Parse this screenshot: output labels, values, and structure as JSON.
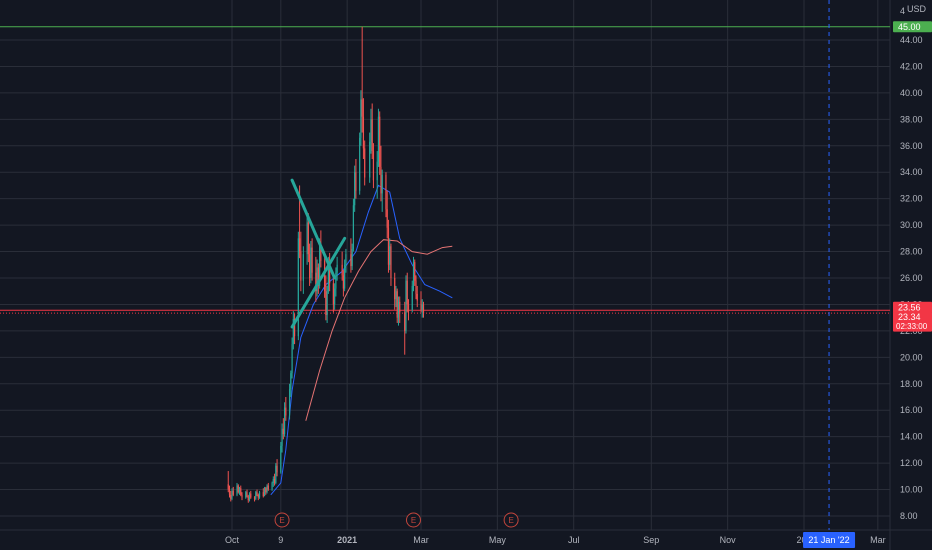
{
  "chart_data": {
    "type": "candlestick",
    "currency": "USD",
    "y_axis": {
      "range": [
        7,
        46.3
      ],
      "ticks": [
        "8.00",
        "10.00",
        "12.00",
        "14.00",
        "16.00",
        "18.00",
        "20.00",
        "22.00",
        "24.00",
        "26.00",
        "28.00",
        "30.00",
        "32.00",
        "34.00",
        "36.00",
        "38.00",
        "40.00",
        "42.00",
        "44.00"
      ],
      "top_tick_partial": "4",
      "grid": true
    },
    "x_axis": {
      "ticks": [
        {
          "label": "Oct",
          "date": "2020-10-01"
        },
        {
          "label": "9",
          "date": "2020-11-09"
        },
        {
          "label": "2021",
          "date": "2021-01-01"
        },
        {
          "label": "Mar",
          "date": "2021-03-01"
        },
        {
          "label": "May",
          "date": "2021-05-01"
        },
        {
          "label": "Jul",
          "date": "2021-07-01"
        },
        {
          "label": "Sep",
          "date": "2021-09-01"
        },
        {
          "label": "Nov",
          "date": "2021-11-01"
        },
        {
          "label": "202",
          "date": "2022-01-01"
        },
        {
          "label": "Mar",
          "date": "2022-03-01"
        }
      ],
      "cursor": {
        "label": "21 Jan '22",
        "date": "2022-01-21"
      }
    },
    "price_labels": [
      {
        "value": 45.0,
        "text": "45.00",
        "color": "#4caf50"
      },
      {
        "value": 23.56,
        "text": "23.56",
        "color": "#f23645"
      },
      {
        "value": 23.34,
        "text": "23.34",
        "color": "#f23645",
        "subtext": "02:33:00"
      }
    ],
    "horizontal_lines": [
      {
        "value": 45.0,
        "color": "#4caf50"
      },
      {
        "value": 23.56,
        "color": "#f23645"
      },
      {
        "value": 23.34,
        "color": "#f23645",
        "dotted": true
      }
    ],
    "earnings_markers": [
      {
        "label": "E",
        "date": "2020-11-10"
      },
      {
        "label": "E",
        "date": "2021-02-23"
      },
      {
        "label": "E",
        "date": "2021-05-12"
      }
    ],
    "drawings": [
      {
        "type": "trendline",
        "color": "#26a69a",
        "from": {
          "date": "2020-11-18",
          "value": 33.4
        },
        "to": {
          "date": "2020-12-22",
          "value": 26.0
        }
      },
      {
        "type": "trendline",
        "color": "#26a69a",
        "from": {
          "date": "2020-11-18",
          "value": 22.3
        },
        "to": {
          "date": "2020-12-30",
          "value": 29.0
        }
      }
    ],
    "moving_averages": [
      {
        "color": "#2962ff",
        "points": [
          [
            "2020-11-01",
            9.6
          ],
          [
            "2020-11-09",
            10.5
          ],
          [
            "2020-11-13",
            13.0
          ],
          [
            "2020-11-18",
            17.5
          ],
          [
            "2020-11-25",
            21.5
          ],
          [
            "2020-12-05",
            24.0
          ],
          [
            "2020-12-15",
            25.5
          ],
          [
            "2020-12-28",
            26.5
          ],
          [
            "2021-01-08",
            28.0
          ],
          [
            "2021-01-18",
            31.0
          ],
          [
            "2021-01-26",
            33.0
          ],
          [
            "2021-02-04",
            32.5
          ],
          [
            "2021-02-12",
            29.0
          ],
          [
            "2021-02-22",
            27.0
          ],
          [
            "2021-03-04",
            25.5
          ],
          [
            "2021-03-16",
            25.0
          ],
          [
            "2021-03-26",
            24.5
          ]
        ]
      },
      {
        "color": "#e57373",
        "points": [
          [
            "2020-11-29",
            15.2
          ],
          [
            "2020-12-10",
            19.0
          ],
          [
            "2020-12-20",
            22.0
          ],
          [
            "2020-12-30",
            24.5
          ],
          [
            "2021-01-10",
            26.5
          ],
          [
            "2021-01-20",
            28.0
          ],
          [
            "2021-01-30",
            28.9
          ],
          [
            "2021-02-10",
            28.8
          ],
          [
            "2021-02-22",
            28.0
          ],
          [
            "2021-03-06",
            27.8
          ],
          [
            "2021-03-18",
            28.3
          ],
          [
            "2021-03-26",
            28.4
          ]
        ]
      }
    ],
    "candles": [
      [
        "2020-09-28",
        10.4,
        11.4,
        9.8,
        10.0
      ],
      [
        "2020-09-29",
        10.0,
        10.3,
        9.4,
        9.6
      ],
      [
        "2020-09-30",
        9.6,
        9.9,
        9.1,
        9.3
      ],
      [
        "2020-10-01",
        9.3,
        10.1,
        9.2,
        9.9
      ],
      [
        "2020-10-02",
        9.9,
        10.2,
        9.5,
        9.6
      ],
      [
        "2020-10-05",
        9.6,
        10.5,
        9.5,
        10.3
      ],
      [
        "2020-10-06",
        10.3,
        10.4,
        9.7,
        9.8
      ],
      [
        "2020-10-07",
        9.8,
        10.2,
        9.6,
        10.1
      ],
      [
        "2020-10-08",
        10.1,
        10.3,
        9.5,
        9.6
      ],
      [
        "2020-10-09",
        9.6,
        9.8,
        9.2,
        9.4
      ],
      [
        "2020-10-12",
        9.4,
        9.9,
        9.3,
        9.8
      ],
      [
        "2020-10-13",
        9.8,
        10.0,
        9.4,
        9.5
      ],
      [
        "2020-10-14",
        9.5,
        9.6,
        9.0,
        9.2
      ],
      [
        "2020-10-15",
        9.2,
        9.8,
        9.1,
        9.7
      ],
      [
        "2020-10-16",
        9.7,
        9.9,
        9.3,
        9.4
      ],
      [
        "2020-10-19",
        9.4,
        9.5,
        9.1,
        9.3
      ],
      [
        "2020-10-20",
        9.3,
        9.9,
        9.2,
        9.8
      ],
      [
        "2020-10-21",
        9.8,
        10.0,
        9.5,
        9.6
      ],
      [
        "2020-10-22",
        9.6,
        9.7,
        9.2,
        9.4
      ],
      [
        "2020-10-23",
        9.4,
        9.9,
        9.3,
        9.8
      ],
      [
        "2020-10-26",
        9.8,
        10.1,
        9.4,
        9.5
      ],
      [
        "2020-10-27",
        9.5,
        10.2,
        9.5,
        10.1
      ],
      [
        "2020-10-28",
        10.1,
        10.2,
        9.6,
        9.8
      ],
      [
        "2020-10-29",
        9.8,
        10.4,
        9.7,
        10.3
      ],
      [
        "2020-10-30",
        10.3,
        10.5,
        9.9,
        10.0
      ],
      [
        "2020-11-02",
        10.0,
        10.6,
        9.9,
        10.5
      ],
      [
        "2020-11-03",
        10.5,
        11.0,
        10.2,
        10.8
      ],
      [
        "2020-11-04",
        10.8,
        11.2,
        10.3,
        10.5
      ],
      [
        "2020-11-05",
        10.5,
        12.0,
        10.4,
        11.8
      ],
      [
        "2020-11-06",
        11.8,
        12.3,
        11.0,
        11.3
      ],
      [
        "2020-11-09",
        11.3,
        13.6,
        11.2,
        13.3
      ],
      [
        "2020-11-10",
        13.3,
        15.0,
        12.8,
        14.6
      ],
      [
        "2020-11-11",
        14.6,
        15.4,
        13.8,
        14.2
      ],
      [
        "2020-11-12",
        14.2,
        16.6,
        14.0,
        16.2
      ],
      [
        "2020-11-13",
        16.2,
        17.0,
        15.2,
        15.6
      ],
      [
        "2020-11-16",
        15.6,
        18.0,
        15.3,
        17.6
      ],
      [
        "2020-11-17",
        17.6,
        19.0,
        17.0,
        18.8
      ],
      [
        "2020-11-18",
        18.8,
        21.5,
        18.4,
        21.0
      ],
      [
        "2020-11-19",
        21.0,
        23.5,
        20.6,
        22.9
      ],
      [
        "2020-11-20",
        22.9,
        23.3,
        21.0,
        21.6
      ],
      [
        "2020-11-23",
        21.6,
        29.5,
        21.3,
        29.0
      ],
      [
        "2020-11-24",
        29.0,
        33.0,
        27.5,
        28.0
      ],
      [
        "2020-11-25",
        28.0,
        29.5,
        25.0,
        25.8
      ],
      [
        "2020-11-27",
        25.8,
        28.4,
        24.8,
        27.8
      ],
      [
        "2020-11-30",
        27.8,
        30.8,
        27.0,
        30.2
      ],
      [
        "2020-12-01",
        30.2,
        30.9,
        27.2,
        27.8
      ],
      [
        "2020-12-02",
        27.8,
        28.6,
        25.4,
        26.0
      ],
      [
        "2020-12-03",
        26.0,
        28.8,
        25.6,
        28.3
      ],
      [
        "2020-12-04",
        28.3,
        29.0,
        25.8,
        26.4
      ],
      [
        "2020-12-07",
        26.4,
        27.6,
        24.2,
        25.0
      ],
      [
        "2020-12-08",
        25.0,
        27.4,
        24.6,
        26.8
      ],
      [
        "2020-12-09",
        26.8,
        27.1,
        24.8,
        25.4
      ],
      [
        "2020-12-10",
        25.4,
        29.0,
        25.2,
        28.6
      ],
      [
        "2020-12-11",
        28.6,
        29.6,
        26.8,
        27.3
      ],
      [
        "2020-12-14",
        27.3,
        27.8,
        24.5,
        25.0
      ],
      [
        "2020-12-15",
        25.0,
        26.2,
        22.8,
        23.2
      ],
      [
        "2020-12-16",
        23.2,
        25.4,
        22.6,
        25.0
      ],
      [
        "2020-12-17",
        25.0,
        27.6,
        24.8,
        27.2
      ],
      [
        "2020-12-18",
        27.2,
        27.9,
        25.0,
        25.6
      ],
      [
        "2020-12-21",
        25.6,
        26.2,
        23.4,
        24.0
      ],
      [
        "2020-12-22",
        24.0,
        25.6,
        23.6,
        25.2
      ],
      [
        "2020-12-23",
        25.2,
        26.8,
        24.6,
        26.4
      ],
      [
        "2020-12-24",
        26.4,
        27.6,
        25.8,
        27.0
      ],
      [
        "2020-12-28",
        27.0,
        28.0,
        25.8,
        26.2
      ],
      [
        "2020-12-29",
        26.2,
        26.6,
        24.6,
        25.2
      ],
      [
        "2020-12-30",
        25.2,
        27.4,
        25.0,
        27.0
      ],
      [
        "2020-12-31",
        27.0,
        28.2,
        26.4,
        27.8
      ],
      [
        "2021-01-04",
        27.8,
        29.0,
        26.4,
        26.9
      ],
      [
        "2021-01-05",
        26.9,
        28.6,
        26.6,
        28.2
      ],
      [
        "2021-01-06",
        28.2,
        32.0,
        28.0,
        31.5
      ],
      [
        "2021-01-07",
        31.5,
        34.5,
        31.0,
        34.0
      ],
      [
        "2021-01-08",
        34.0,
        35.0,
        32.0,
        32.6
      ],
      [
        "2021-01-11",
        32.6,
        37.0,
        32.3,
        36.6
      ],
      [
        "2021-01-12",
        36.6,
        40.2,
        36.0,
        39.5
      ],
      [
        "2021-01-13",
        39.5,
        45.0,
        37.0,
        38.2
      ],
      [
        "2021-01-14",
        38.2,
        39.6,
        35.0,
        35.8
      ],
      [
        "2021-01-15",
        35.8,
        36.4,
        33.0,
        33.6
      ],
      [
        "2021-01-19",
        33.6,
        37.0,
        33.2,
        36.3
      ],
      [
        "2021-01-20",
        36.3,
        38.8,
        35.4,
        38.0
      ],
      [
        "2021-01-21",
        38.0,
        39.2,
        35.0,
        35.6
      ],
      [
        "2021-01-22",
        35.6,
        36.2,
        32.8,
        33.4
      ],
      [
        "2021-01-25",
        33.4,
        35.6,
        32.0,
        34.8
      ],
      [
        "2021-01-26",
        34.8,
        38.8,
        34.4,
        38.2
      ],
      [
        "2021-01-27",
        38.2,
        38.6,
        33.8,
        34.4
      ],
      [
        "2021-01-28",
        34.4,
        36.0,
        31.8,
        32.4
      ],
      [
        "2021-01-29",
        32.4,
        34.2,
        31.0,
        33.8
      ],
      [
        "2021-02-01",
        33.8,
        34.0,
        30.6,
        31.2
      ],
      [
        "2021-02-02",
        31.2,
        32.6,
        29.0,
        29.8
      ],
      [
        "2021-02-03",
        29.8,
        30.4,
        26.4,
        27.0
      ],
      [
        "2021-02-04",
        27.0,
        29.0,
        26.6,
        28.4
      ],
      [
        "2021-02-05",
        28.4,
        28.6,
        25.4,
        26.0
      ],
      [
        "2021-02-08",
        26.0,
        26.4,
        23.6,
        24.4
      ],
      [
        "2021-02-09",
        24.4,
        25.4,
        23.8,
        25.0
      ],
      [
        "2021-02-10",
        25.0,
        25.2,
        22.6,
        23.0
      ],
      [
        "2021-02-11",
        23.0,
        24.6,
        22.4,
        24.2
      ],
      [
        "2021-02-12",
        24.2,
        24.6,
        22.6,
        23.4
      ],
      [
        "2021-02-16",
        23.4,
        24.2,
        20.2,
        22.0
      ],
      [
        "2021-02-17",
        22.0,
        26.2,
        21.8,
        25.8
      ],
      [
        "2021-02-18",
        25.8,
        26.4,
        23.4,
        24.0
      ],
      [
        "2021-02-19",
        24.0,
        24.4,
        22.8,
        23.6
      ],
      [
        "2021-02-22",
        23.6,
        25.8,
        23.4,
        25.4
      ],
      [
        "2021-02-23",
        25.4,
        27.6,
        25.0,
        27.2
      ],
      [
        "2021-02-24",
        27.2,
        27.4,
        25.4,
        25.8
      ],
      [
        "2021-02-25",
        25.8,
        26.2,
        24.4,
        24.8
      ],
      [
        "2021-02-26",
        24.8,
        25.4,
        23.8,
        24.3
      ],
      [
        "2021-03-01",
        24.3,
        25.0,
        23.4,
        23.6
      ],
      [
        "2021-03-02",
        23.6,
        24.4,
        23.0,
        24.0
      ],
      [
        "2021-03-03",
        24.0,
        24.2,
        23.0,
        23.34
      ]
    ],
    "candle_colors": {
      "up": "#26a69a",
      "down": "#ef5350"
    }
  }
}
